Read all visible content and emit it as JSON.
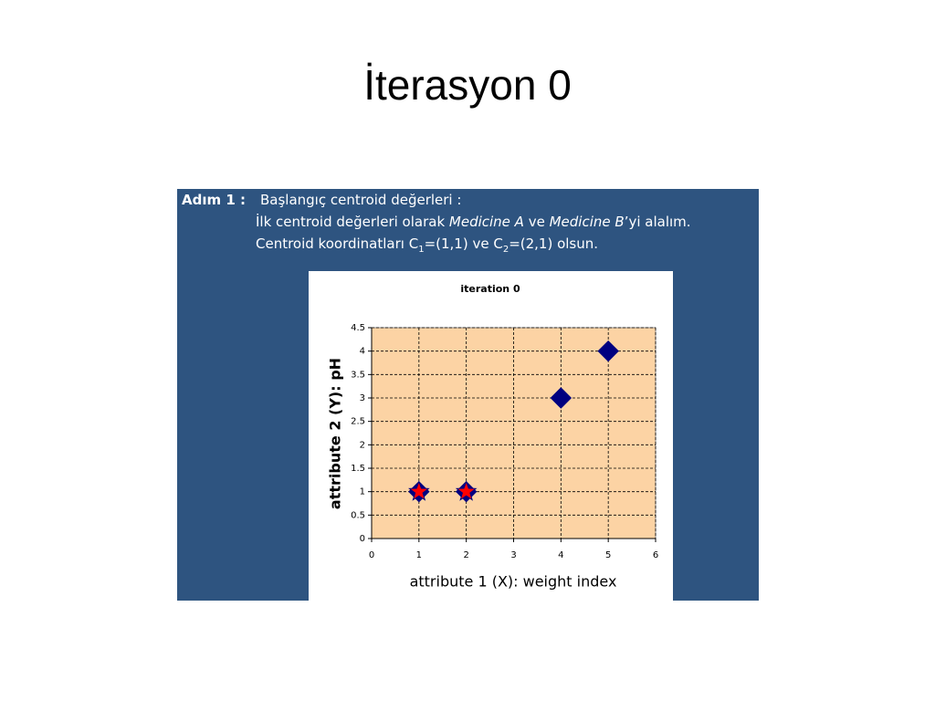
{
  "title": "İterasyon 0",
  "panel": {
    "step": "Adım 1 :",
    "lines": [
      [
        {
          "text": "Başlangıç centroid değerleri :"
        }
      ],
      [
        {
          "text": "İlk centroid değerleri olarak "
        },
        {
          "text": "Medicine A",
          "style": "italic"
        },
        {
          "text": " ve "
        },
        {
          "text": "Medicine B",
          "style": "italic"
        },
        {
          "text": "’yi alalım."
        }
      ],
      [
        {
          "text": "Centroid koordinatları C"
        },
        {
          "text": "1",
          "style": "sub"
        },
        {
          "text": "=(1,1) ve C"
        },
        {
          "text": "2",
          "style": "sub"
        },
        {
          "text": "=(2,1) olsun."
        }
      ]
    ]
  },
  "chart_data": {
    "type": "scatter",
    "title": "iteration 0",
    "x_label": "attribute 1 (X): weight index",
    "y_label": "attribute 2 (Y): pH",
    "series": [
      {
        "marker": "diamond",
        "color": "#000080",
        "x": [
          1,
          2,
          4,
          5
        ],
        "values": [
          1,
          1,
          3,
          4
        ]
      },
      {
        "marker": "star",
        "color": "#ff0000",
        "x": [
          1,
          2
        ],
        "values": [
          1,
          1
        ]
      }
    ],
    "xlim": [
      0,
      6
    ],
    "xticks": [
      0,
      1,
      2,
      3,
      4,
      5,
      6
    ],
    "ylim": [
      0,
      4.5
    ],
    "yticks": [
      0,
      0.5,
      1,
      1.5,
      2,
      2.5,
      3,
      3.5,
      4,
      4.5
    ],
    "grid": true,
    "plot_background": "#fcd3a4"
  }
}
